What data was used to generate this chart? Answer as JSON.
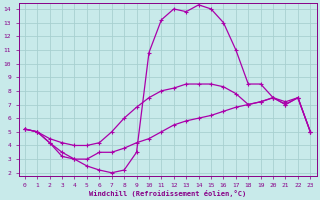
{
  "title": "",
  "xlabel": "Windchill (Refroidissement éolien,°C)",
  "ylabel": "",
  "bg_color": "#c8eaea",
  "line_color": "#aa00aa",
  "grid_color": "#a8d0d0",
  "axis_color": "#880088",
  "tick_color": "#880088",
  "xlim": [
    0,
    23
  ],
  "ylim": [
    2,
    14
  ],
  "xticks": [
    0,
    1,
    2,
    3,
    4,
    5,
    6,
    7,
    8,
    9,
    10,
    11,
    12,
    13,
    14,
    15,
    16,
    17,
    18,
    19,
    20,
    21,
    22,
    23
  ],
  "yticks": [
    2,
    3,
    4,
    5,
    6,
    7,
    8,
    9,
    10,
    11,
    12,
    13,
    14
  ],
  "line1_x": [
    0,
    1,
    2,
    3,
    4,
    5,
    6,
    7,
    8,
    9,
    10,
    11,
    12,
    13,
    14,
    15,
    16,
    17,
    18,
    19,
    20,
    21,
    22,
    23
  ],
  "line1_y": [
    5.2,
    5.0,
    4.2,
    3.2,
    3.0,
    2.5,
    2.2,
    2.0,
    2.2,
    3.5,
    10.8,
    13.2,
    14.0,
    13.8,
    14.3,
    14.0,
    13.0,
    11.0,
    8.5,
    8.5,
    7.5,
    7.2,
    7.5,
    5.0
  ],
  "line2_x": [
    0,
    1,
    2,
    3,
    4,
    5,
    6,
    7,
    8,
    9,
    10,
    11,
    12,
    13,
    14,
    15,
    16,
    17,
    18,
    19,
    20,
    21,
    22,
    23
  ],
  "line2_y": [
    5.2,
    5.0,
    4.5,
    4.2,
    4.0,
    4.0,
    4.2,
    5.0,
    6.0,
    6.8,
    7.5,
    8.0,
    8.2,
    8.5,
    8.5,
    8.5,
    8.3,
    7.8,
    7.0,
    7.2,
    7.5,
    7.0,
    7.5,
    5.0
  ],
  "line3_x": [
    0,
    1,
    2,
    3,
    4,
    5,
    6,
    7,
    8,
    9,
    10,
    11,
    12,
    13,
    14,
    15,
    16,
    17,
    18,
    19,
    20,
    21,
    22,
    23
  ],
  "line3_y": [
    5.2,
    5.0,
    4.2,
    3.5,
    3.0,
    3.0,
    3.5,
    3.5,
    3.8,
    4.2,
    4.5,
    5.0,
    5.5,
    5.8,
    6.0,
    6.2,
    6.5,
    6.8,
    7.0,
    7.2,
    7.5,
    7.0,
    7.5,
    5.0
  ]
}
